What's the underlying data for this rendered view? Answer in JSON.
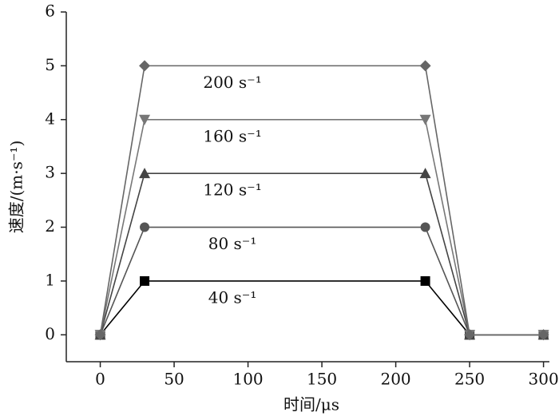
{
  "chart_data": {
    "type": "line",
    "x_label": "时间/μs",
    "y_label": "速度/(m·s⁻¹)",
    "x": [
      0,
      30,
      220,
      250,
      300
    ],
    "series": [
      {
        "name": "40 s⁻¹",
        "color": "#000000",
        "marker": "square",
        "values": [
          0,
          1,
          1,
          0,
          0
        ]
      },
      {
        "name": "80 s⁻¹",
        "color": "#555555",
        "marker": "circle",
        "values": [
          0,
          2,
          2,
          0,
          0
        ]
      },
      {
        "name": "120 s⁻¹",
        "color": "#444444",
        "marker": "triangle-up",
        "values": [
          0,
          3,
          3,
          0,
          0
        ]
      },
      {
        "name": "160 s⁻¹",
        "color": "#777777",
        "marker": "triangle-down",
        "values": [
          0,
          4,
          4,
          0,
          0
        ]
      },
      {
        "name": "200 s⁻¹",
        "color": "#666666",
        "marker": "diamond",
        "values": [
          0,
          5,
          5,
          0,
          0
        ]
      }
    ],
    "xlim": [
      -23,
      304
    ],
    "ylim": [
      -0.5,
      6
    ],
    "xticks": [
      0,
      50,
      100,
      150,
      200,
      250,
      300
    ],
    "yticks": [
      0,
      1,
      2,
      3,
      4,
      5,
      6
    ]
  }
}
